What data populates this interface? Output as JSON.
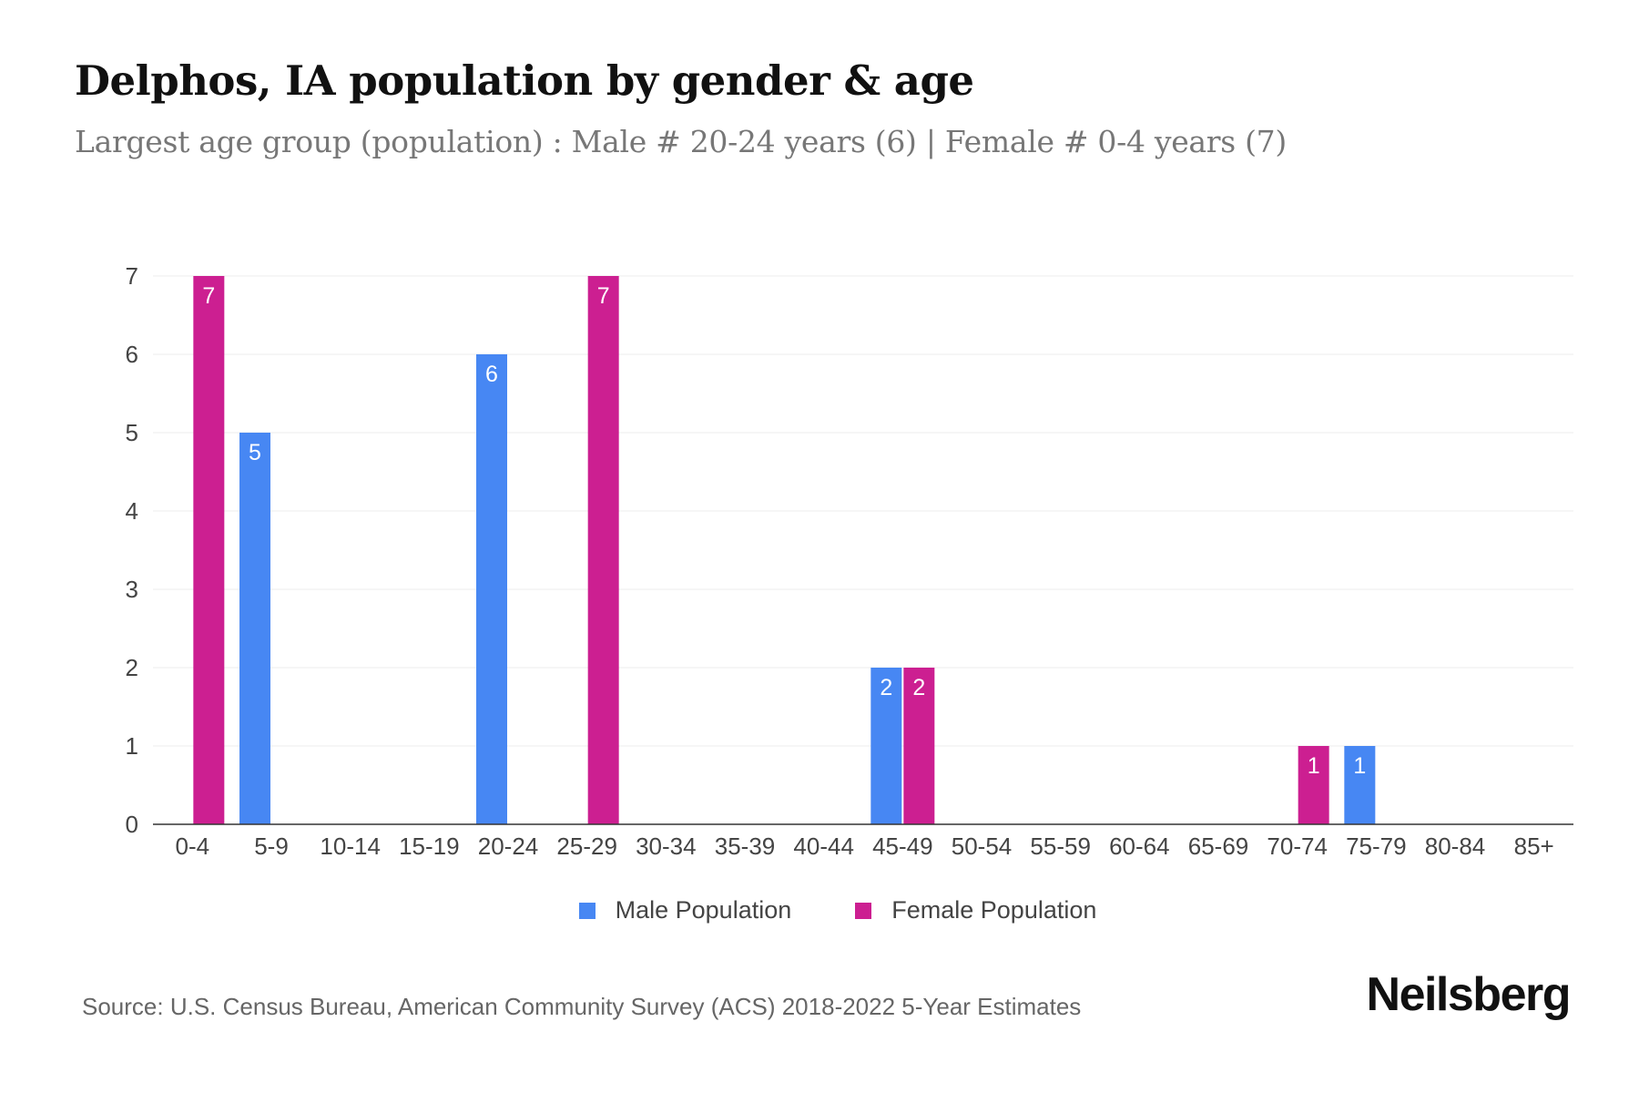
{
  "header": {
    "title": "Delphos, IA population by gender & age",
    "subtitle": "Largest age group (population) : Male # 20-24 years (6) | Female # 0-4 years (7)"
  },
  "footer": {
    "source": "Source: U.S. Census Bureau, American Community Survey (ACS) 2018-2022 5-Year Estimates",
    "brand": "Neilsberg"
  },
  "legend": {
    "male_label": "Male Population",
    "female_label": "Female Population"
  },
  "colors": {
    "male": "#4787f3",
    "female": "#cc1f91"
  },
  "chart_data": {
    "type": "bar",
    "title": "Delphos, IA population by gender & age",
    "subtitle": "Largest age group (population) : Male # 20-24 years (6) | Female # 0-4 years (7)",
    "categories": [
      "0-4",
      "5-9",
      "10-14",
      "15-19",
      "20-24",
      "25-29",
      "30-34",
      "35-39",
      "40-44",
      "45-49",
      "50-54",
      "55-59",
      "60-64",
      "65-69",
      "70-74",
      "75-79",
      "80-84",
      "85+"
    ],
    "series": [
      {
        "name": "Male Population",
        "color": "#4787f3",
        "values": [
          0,
          5,
          0,
          0,
          6,
          0,
          0,
          0,
          0,
          2,
          0,
          0,
          0,
          0,
          0,
          1,
          0,
          0
        ]
      },
      {
        "name": "Female Population",
        "color": "#cc1f91",
        "values": [
          7,
          0,
          0,
          0,
          0,
          7,
          0,
          0,
          0,
          2,
          0,
          0,
          0,
          0,
          1,
          0,
          0,
          0
        ]
      }
    ],
    "ylim": [
      0,
      7
    ],
    "yticks": [
      0,
      1,
      2,
      3,
      4,
      5,
      6,
      7
    ],
    "grid": true,
    "legend_position": "bottom",
    "data_labels": true
  }
}
